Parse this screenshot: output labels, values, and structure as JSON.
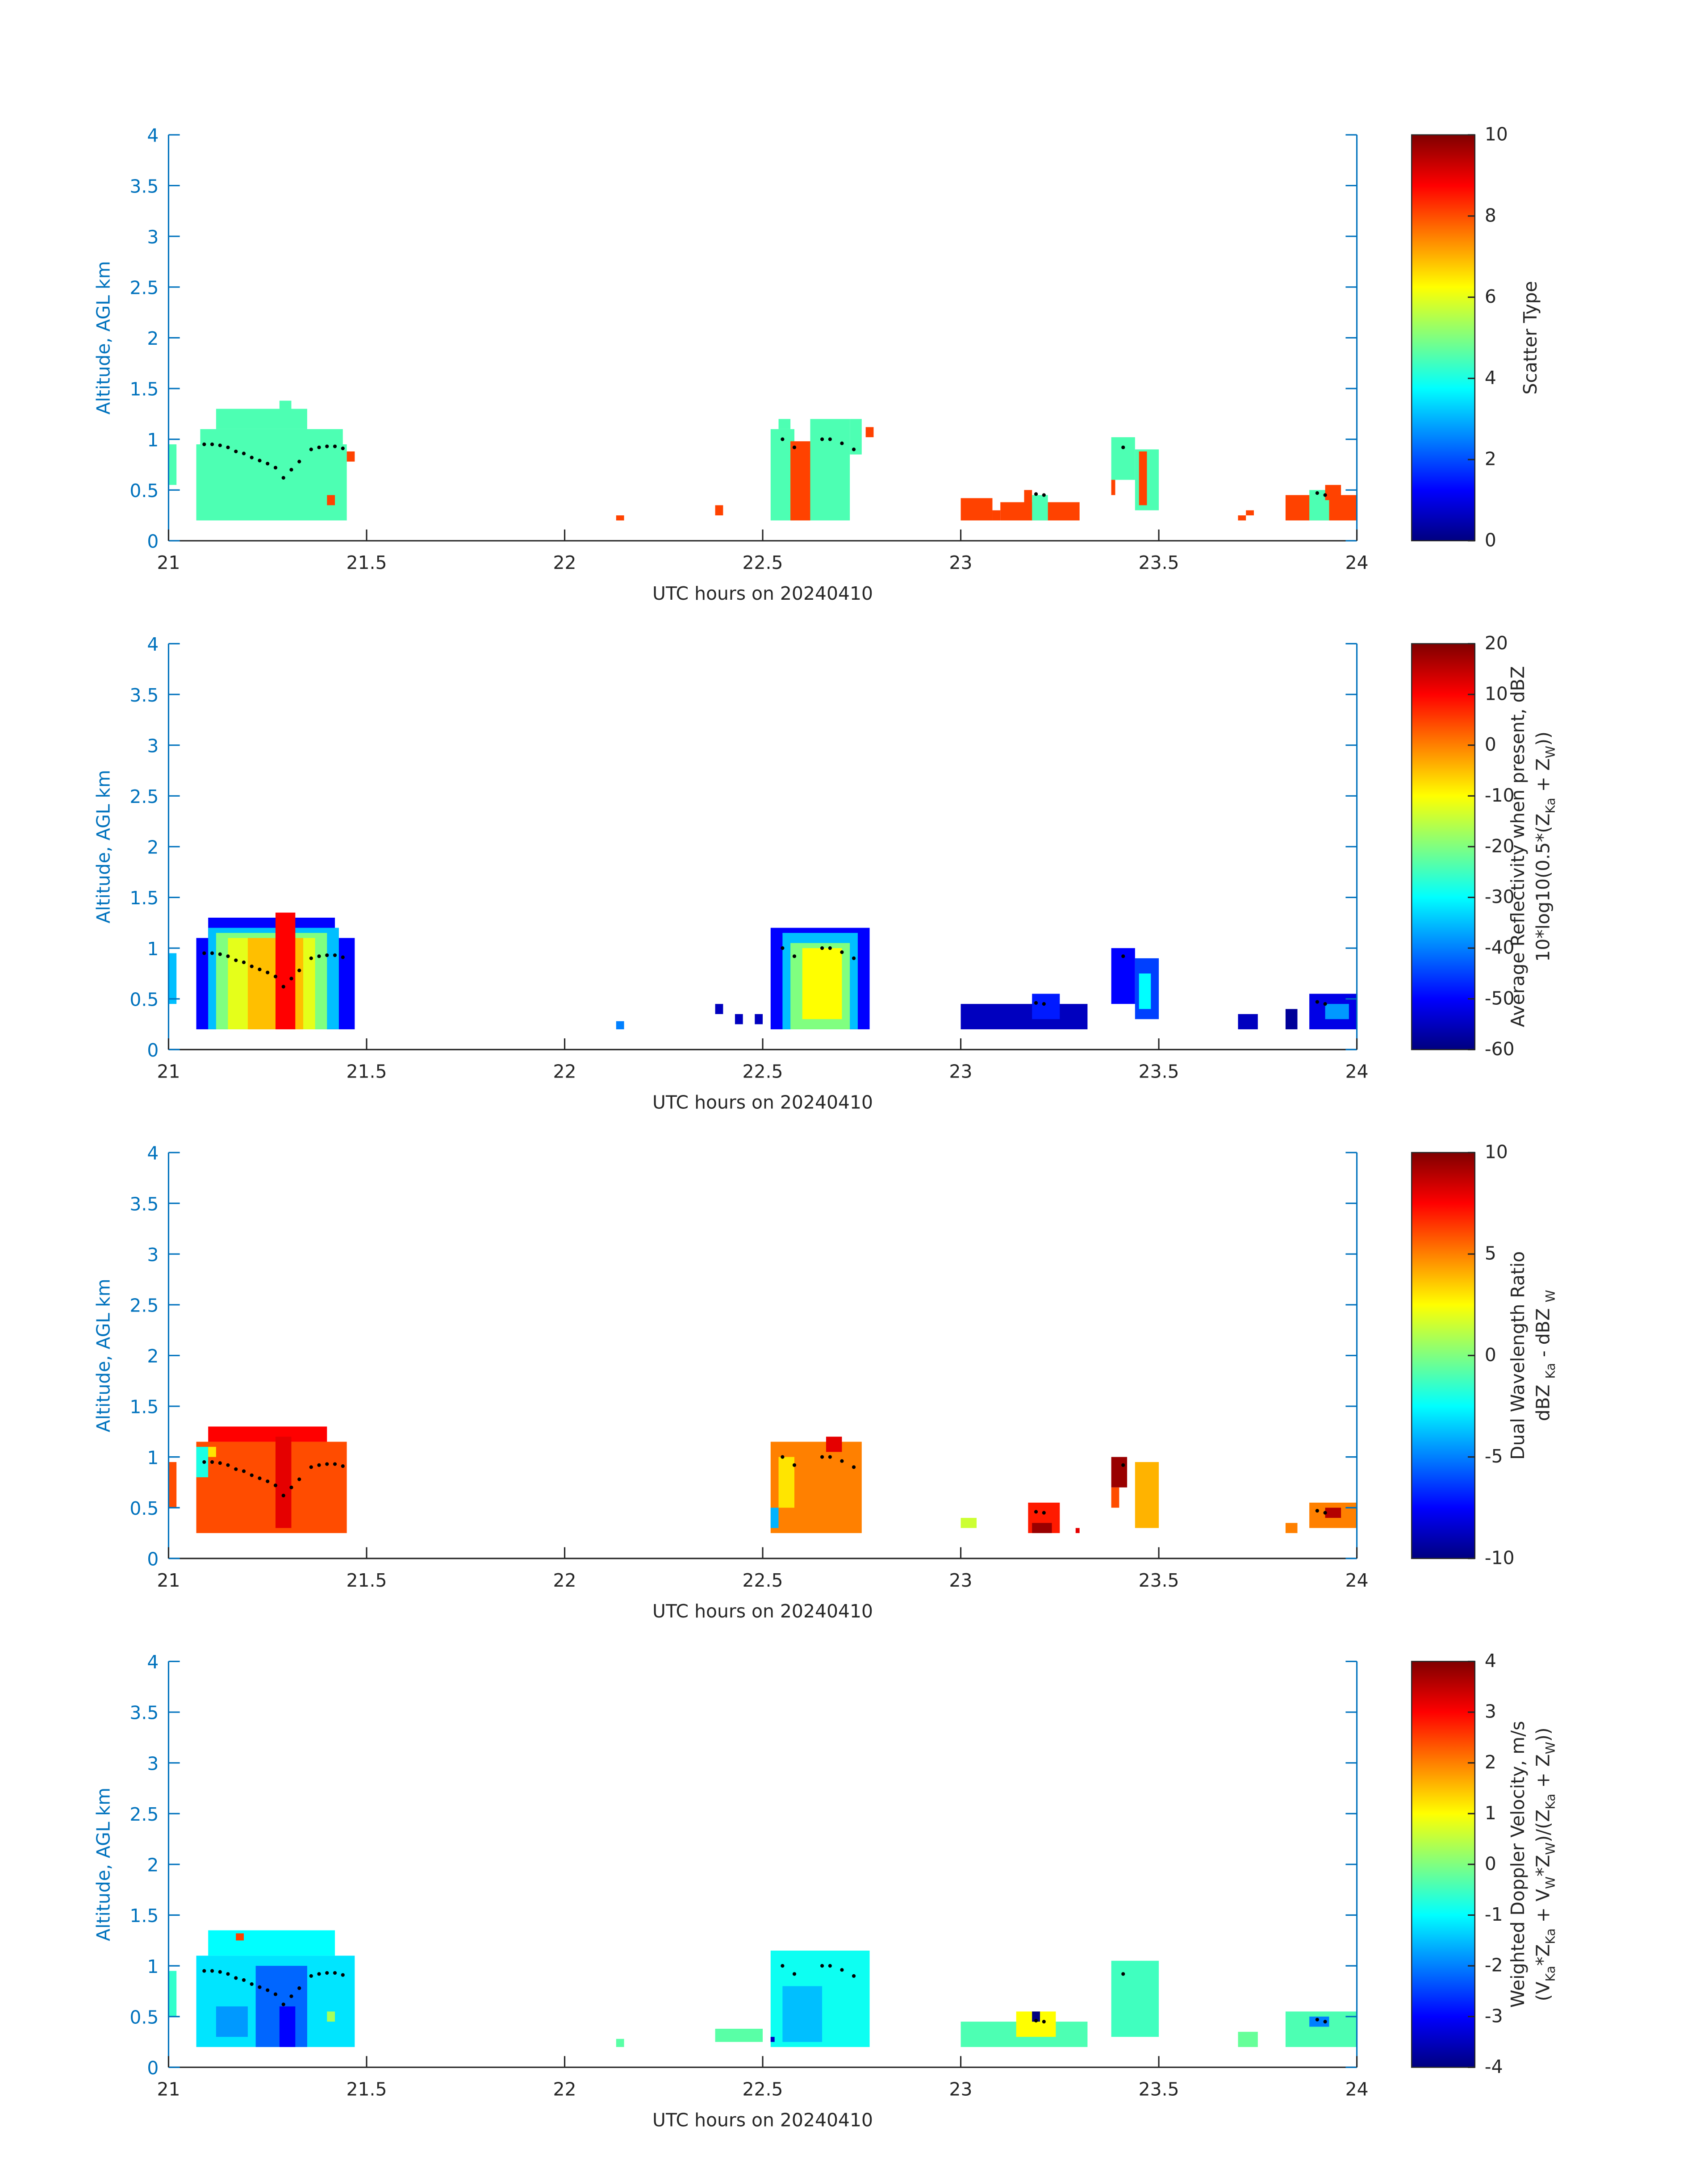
{
  "chart_data": [
    {
      "type": "heatmap",
      "colormap": "jet",
      "xlabel": "UTC hours on 20240410",
      "ylabel": "Altitude, AGL km",
      "xlim": [
        21,
        24
      ],
      "xticks": [
        21,
        21.5,
        22,
        22.5,
        23,
        23.5,
        24
      ],
      "ylim": [
        0,
        4
      ],
      "yticks": [
        0,
        0.5,
        1,
        1.5,
        2,
        2.5,
        3,
        3.5,
        4
      ],
      "clim": [
        0,
        10
      ],
      "cticks": [
        0,
        2,
        4,
        6,
        8,
        10
      ],
      "colorbar_label": [
        [
          "Scatter Type"
        ]
      ],
      "cells": [
        [
          21.0,
          21.02,
          0.55,
          0.95,
          4.5
        ],
        [
          21.07,
          21.45,
          0.2,
          0.95,
          4.5
        ],
        [
          21.08,
          21.44,
          0.95,
          1.1,
          4.5
        ],
        [
          21.12,
          21.35,
          1.1,
          1.3,
          4.5
        ],
        [
          21.28,
          21.31,
          1.3,
          1.38,
          4.5
        ],
        [
          21.45,
          21.47,
          0.78,
          0.88,
          8.1
        ],
        [
          21.4,
          21.42,
          0.35,
          0.45,
          8.1
        ],
        [
          22.13,
          22.15,
          0.2,
          0.25,
          8.1
        ],
        [
          22.38,
          22.4,
          0.25,
          0.35,
          8.1
        ],
        [
          22.52,
          22.58,
          0.2,
          1.1,
          4.5
        ],
        [
          22.54,
          22.57,
          1.1,
          1.2,
          4.5
        ],
        [
          22.57,
          22.62,
          0.2,
          0.98,
          8.1
        ],
        [
          22.62,
          22.72,
          0.2,
          1.2,
          4.5
        ],
        [
          22.72,
          22.75,
          0.85,
          1.2,
          4.5
        ],
        [
          22.76,
          22.78,
          1.02,
          1.12,
          8.1
        ],
        [
          23.0,
          23.08,
          0.2,
          0.42,
          8.1
        ],
        [
          23.08,
          23.1,
          0.2,
          0.3,
          8.1
        ],
        [
          23.1,
          23.3,
          0.2,
          0.38,
          8.1
        ],
        [
          23.16,
          23.18,
          0.3,
          0.5,
          8.1
        ],
        [
          23.18,
          23.22,
          0.2,
          0.45,
          4.5
        ],
        [
          23.38,
          23.44,
          0.6,
          1.02,
          4.5
        ],
        [
          23.44,
          23.5,
          0.3,
          0.9,
          4.5
        ],
        [
          23.45,
          23.47,
          0.35,
          0.88,
          8.1
        ],
        [
          23.38,
          23.39,
          0.45,
          0.6,
          8.1
        ],
        [
          23.7,
          23.72,
          0.2,
          0.25,
          8.1
        ],
        [
          23.72,
          23.74,
          0.25,
          0.3,
          8.1
        ],
        [
          23.82,
          24.0,
          0.2,
          0.45,
          8.1
        ],
        [
          23.88,
          23.93,
          0.2,
          0.5,
          4.5
        ],
        [
          23.92,
          23.96,
          0.4,
          0.55,
          8.1
        ]
      ],
      "points": {
        "color": "#000000",
        "x": [
          21.09,
          21.11,
          21.13,
          21.15,
          21.17,
          21.19,
          21.21,
          21.23,
          21.25,
          21.27,
          21.29,
          21.31,
          21.33,
          21.36,
          21.38,
          21.4,
          21.42,
          21.44,
          22.55,
          22.58,
          22.65,
          22.67,
          22.7,
          22.73,
          23.19,
          23.21,
          23.41,
          23.9,
          23.92
        ],
        "y": [
          0.95,
          0.95,
          0.94,
          0.92,
          0.88,
          0.86,
          0.82,
          0.79,
          0.76,
          0.72,
          0.62,
          0.7,
          0.78,
          0.9,
          0.92,
          0.93,
          0.93,
          0.91,
          1.0,
          0.92,
          1.0,
          1.0,
          0.96,
          0.9,
          0.46,
          0.45,
          0.92,
          0.47,
          0.45
        ]
      }
    },
    {
      "type": "heatmap",
      "colormap": "jet",
      "xlabel": "UTC hours on 20240410",
      "ylabel": "Altitude, AGL km",
      "xlim": [
        21,
        24
      ],
      "xticks": [
        21,
        21.5,
        22,
        22.5,
        23,
        23.5,
        24
      ],
      "ylim": [
        0,
        4
      ],
      "yticks": [
        0,
        0.5,
        1,
        1.5,
        2,
        2.5,
        3,
        3.5,
        4
      ],
      "clim": [
        -60,
        20
      ],
      "cticks": [
        -60,
        -50,
        -40,
        -30,
        -20,
        -10,
        0,
        10,
        20
      ],
      "colorbar_label": [
        [
          "Average Reflectivity when present, dBZ"
        ],
        [
          "10*log10(0.5*(Z",
          "Ka",
          " + Z",
          "W",
          "))"
        ]
      ],
      "cells": [
        [
          21.0,
          21.02,
          0.45,
          0.95,
          -35
        ],
        [
          21.07,
          21.47,
          0.2,
          1.1,
          -50
        ],
        [
          21.1,
          21.42,
          1.1,
          1.3,
          -50
        ],
        [
          21.1,
          21.43,
          0.2,
          1.2,
          -35
        ],
        [
          21.12,
          21.4,
          0.2,
          1.15,
          -20
        ],
        [
          21.15,
          21.37,
          0.2,
          1.1,
          -12
        ],
        [
          21.2,
          21.34,
          0.2,
          1.1,
          -5
        ],
        [
          21.27,
          21.32,
          0.2,
          1.35,
          10
        ],
        [
          22.13,
          22.15,
          0.2,
          0.28,
          -40
        ],
        [
          22.38,
          22.4,
          0.35,
          0.45,
          -55
        ],
        [
          22.43,
          22.45,
          0.25,
          0.35,
          -55
        ],
        [
          22.48,
          22.5,
          0.25,
          0.35,
          -55
        ],
        [
          22.52,
          22.77,
          0.2,
          1.2,
          -50
        ],
        [
          22.55,
          22.74,
          0.2,
          1.15,
          -35
        ],
        [
          22.57,
          22.72,
          0.2,
          1.05,
          -20
        ],
        [
          22.6,
          22.7,
          0.3,
          1.0,
          -10
        ],
        [
          23.0,
          23.32,
          0.2,
          0.45,
          -55
        ],
        [
          23.18,
          23.25,
          0.3,
          0.55,
          -48
        ],
        [
          23.38,
          23.44,
          0.45,
          1.0,
          -50
        ],
        [
          23.44,
          23.5,
          0.3,
          0.9,
          -45
        ],
        [
          23.45,
          23.48,
          0.4,
          0.75,
          -30
        ],
        [
          23.7,
          23.75,
          0.2,
          0.35,
          -55
        ],
        [
          23.82,
          23.85,
          0.2,
          0.4,
          -58
        ],
        [
          23.88,
          24.0,
          0.2,
          0.55,
          -52
        ],
        [
          23.92,
          23.98,
          0.3,
          0.45,
          -38
        ]
      ],
      "points": {
        "color": "#000000",
        "x": [
          21.09,
          21.11,
          21.13,
          21.15,
          21.17,
          21.19,
          21.21,
          21.23,
          21.25,
          21.27,
          21.29,
          21.31,
          21.33,
          21.36,
          21.38,
          21.4,
          21.42,
          21.44,
          22.55,
          22.58,
          22.65,
          22.67,
          22.7,
          22.73,
          23.19,
          23.21,
          23.41,
          23.9,
          23.92
        ],
        "y": [
          0.95,
          0.95,
          0.94,
          0.92,
          0.88,
          0.86,
          0.82,
          0.79,
          0.76,
          0.72,
          0.62,
          0.7,
          0.78,
          0.9,
          0.92,
          0.93,
          0.93,
          0.91,
          1.0,
          0.92,
          1.0,
          1.0,
          0.96,
          0.9,
          0.46,
          0.45,
          0.92,
          0.47,
          0.45
        ]
      }
    },
    {
      "type": "heatmap",
      "colormap": "jet",
      "xlabel": "UTC hours on 20240410",
      "ylabel": "Altitude, AGL km",
      "xlim": [
        21,
        24
      ],
      "xticks": [
        21,
        21.5,
        22,
        22.5,
        23,
        23.5,
        24
      ],
      "ylim": [
        0,
        4
      ],
      "yticks": [
        0,
        0.5,
        1,
        1.5,
        2,
        2.5,
        3,
        3.5,
        4
      ],
      "clim": [
        -10,
        10
      ],
      "cticks": [
        -10,
        -5,
        0,
        5,
        10
      ],
      "colorbar_label": [
        [
          "Dual Wavelength Ratio"
        ],
        [
          "dBZ ",
          "Ka",
          " - dBZ ",
          "W"
        ]
      ],
      "cells": [
        [
          21.0,
          21.02,
          0.5,
          0.95,
          6
        ],
        [
          21.07,
          21.45,
          0.25,
          1.15,
          6
        ],
        [
          21.1,
          21.4,
          1.15,
          1.3,
          7.5
        ],
        [
          21.27,
          21.31,
          0.3,
          1.2,
          8
        ],
        [
          21.07,
          21.1,
          0.8,
          1.1,
          -2
        ],
        [
          21.1,
          21.12,
          1.0,
          1.1,
          3
        ],
        [
          22.52,
          22.75,
          0.25,
          1.15,
          5
        ],
        [
          22.54,
          22.58,
          0.5,
          1.0,
          3
        ],
        [
          22.66,
          22.7,
          1.05,
          1.2,
          8
        ],
        [
          22.52,
          22.54,
          0.3,
          0.5,
          -4
        ],
        [
          23.0,
          23.04,
          0.3,
          0.4,
          1.5
        ],
        [
          23.17,
          23.25,
          0.25,
          0.55,
          7
        ],
        [
          23.18,
          23.23,
          0.25,
          0.35,
          9.5
        ],
        [
          23.29,
          23.3,
          0.25,
          0.3,
          8
        ],
        [
          23.38,
          23.42,
          0.7,
          1.0,
          9.5
        ],
        [
          23.44,
          23.5,
          0.3,
          0.95,
          4
        ],
        [
          23.38,
          23.4,
          0.5,
          0.7,
          6
        ],
        [
          23.82,
          23.85,
          0.25,
          0.35,
          5
        ],
        [
          23.88,
          24.0,
          0.3,
          0.55,
          5
        ],
        [
          23.92,
          23.96,
          0.4,
          0.5,
          9
        ]
      ],
      "points": {
        "color": "#000000",
        "x": [
          21.09,
          21.11,
          21.13,
          21.15,
          21.17,
          21.19,
          21.21,
          21.23,
          21.25,
          21.27,
          21.29,
          21.31,
          21.33,
          21.36,
          21.38,
          21.4,
          21.42,
          21.44,
          22.55,
          22.58,
          22.65,
          22.67,
          22.7,
          22.73,
          23.19,
          23.21,
          23.41,
          23.9,
          23.92
        ],
        "y": [
          0.95,
          0.95,
          0.94,
          0.92,
          0.88,
          0.86,
          0.82,
          0.79,
          0.76,
          0.72,
          0.62,
          0.7,
          0.78,
          0.9,
          0.92,
          0.93,
          0.93,
          0.91,
          1.0,
          0.92,
          1.0,
          1.0,
          0.96,
          0.9,
          0.46,
          0.45,
          0.92,
          0.47,
          0.45
        ]
      }
    },
    {
      "type": "heatmap",
      "colormap": "jet",
      "xlabel": "UTC hours on 20240410",
      "ylabel": "Altitude, AGL km",
      "xlim": [
        21,
        24
      ],
      "xticks": [
        21,
        21.5,
        22,
        22.5,
        23,
        23.5,
        24
      ],
      "ylim": [
        0,
        4
      ],
      "yticks": [
        0,
        0.5,
        1,
        1.5,
        2,
        2.5,
        3,
        3.5,
        4
      ],
      "clim": [
        -4,
        4
      ],
      "cticks": [
        -4,
        -3,
        -2,
        -1,
        0,
        1,
        2,
        3,
        4
      ],
      "colorbar_label": [
        [
          "Weighted Doppler Velocity, m/s"
        ],
        [
          "(V",
          "Ka",
          "*Z",
          "Ka",
          " + V",
          "W",
          "*Z",
          "W",
          ")/(Z",
          "Ka",
          " + Z",
          "W",
          "))"
        ]
      ],
      "cells": [
        [
          21.0,
          21.02,
          0.5,
          0.95,
          -0.6
        ],
        [
          21.07,
          21.47,
          0.2,
          1.1,
          -1.2
        ],
        [
          21.1,
          21.42,
          1.1,
          1.35,
          -1.0
        ],
        [
          21.22,
          21.35,
          0.2,
          1.0,
          -2.2
        ],
        [
          21.28,
          21.32,
          0.2,
          0.6,
          -3
        ],
        [
          21.12,
          21.2,
          0.3,
          0.6,
          -1.8
        ],
        [
          21.17,
          21.19,
          1.25,
          1.32,
          2.5
        ],
        [
          21.4,
          21.42,
          0.45,
          0.55,
          0.3
        ],
        [
          22.13,
          22.15,
          0.2,
          0.28,
          -0.3
        ],
        [
          22.38,
          22.5,
          0.25,
          0.38,
          -0.3
        ],
        [
          22.52,
          22.77,
          0.2,
          1.15,
          -0.9
        ],
        [
          22.55,
          22.65,
          0.25,
          0.8,
          -1.5
        ],
        [
          22.52,
          22.53,
          0.25,
          0.3,
          -3.5
        ],
        [
          23.0,
          23.32,
          0.2,
          0.45,
          -0.4
        ],
        [
          23.14,
          23.24,
          0.3,
          0.55,
          1.0
        ],
        [
          23.18,
          23.2,
          0.45,
          0.55,
          -4
        ],
        [
          23.38,
          23.5,
          0.3,
          1.05,
          -0.5
        ],
        [
          23.7,
          23.75,
          0.2,
          0.35,
          -0.2
        ],
        [
          23.82,
          24.0,
          0.2,
          0.55,
          -0.4
        ],
        [
          23.88,
          23.93,
          0.4,
          0.5,
          -2
        ]
      ],
      "points": {
        "color": "#000000",
        "x": [
          21.09,
          21.11,
          21.13,
          21.15,
          21.17,
          21.19,
          21.21,
          21.23,
          21.25,
          21.27,
          21.29,
          21.31,
          21.33,
          21.36,
          21.38,
          21.4,
          21.42,
          21.44,
          22.55,
          22.58,
          22.65,
          22.67,
          22.7,
          22.73,
          23.19,
          23.21,
          23.41,
          23.9,
          23.92
        ],
        "y": [
          0.95,
          0.95,
          0.94,
          0.92,
          0.88,
          0.86,
          0.82,
          0.79,
          0.76,
          0.72,
          0.62,
          0.7,
          0.78,
          0.9,
          0.92,
          0.93,
          0.93,
          0.91,
          1.0,
          0.92,
          1.0,
          1.0,
          0.96,
          0.9,
          0.46,
          0.45,
          0.92,
          0.47,
          0.45
        ]
      }
    }
  ]
}
